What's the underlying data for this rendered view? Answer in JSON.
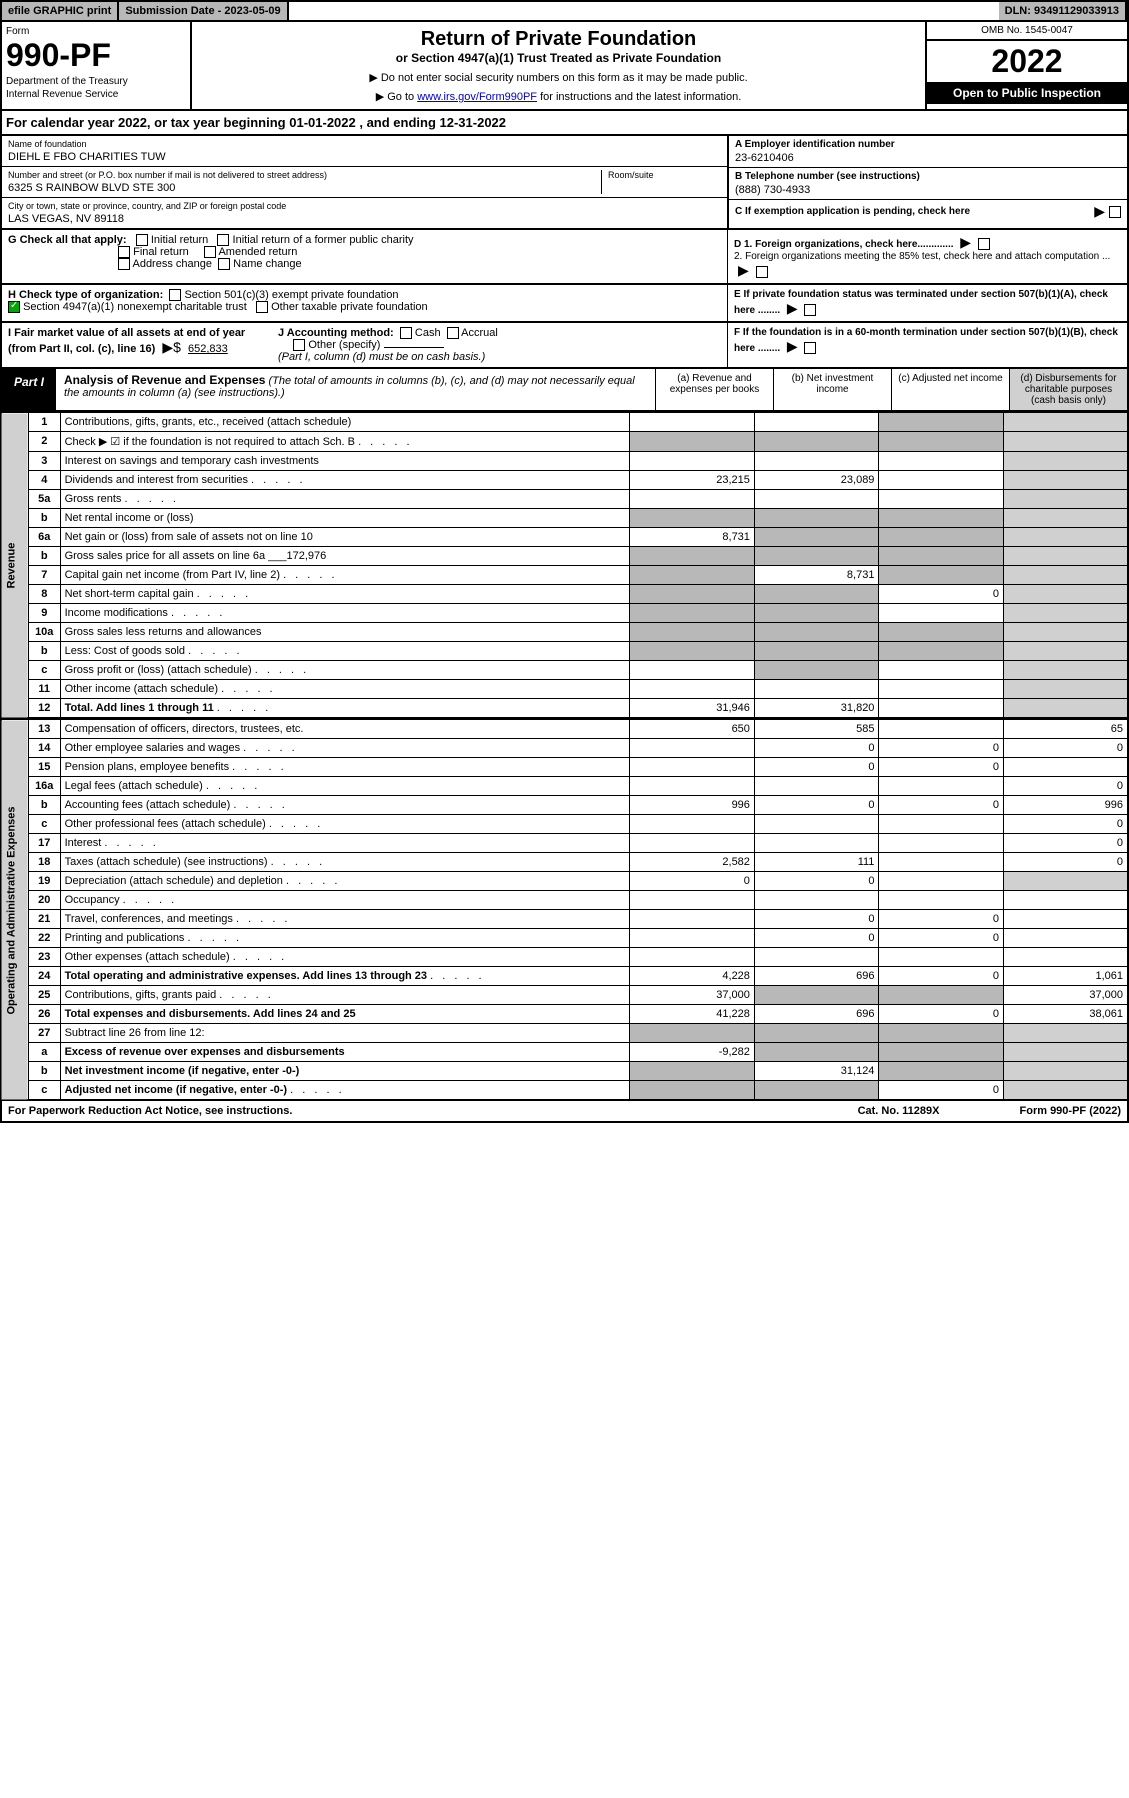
{
  "top": {
    "efile_prefix": "efile",
    "efile_graphic": "GRAPHIC",
    "efile_print": "print",
    "submission_label": "Submission Date - ",
    "submission_date": "2023-05-09",
    "dln_label": "DLN: ",
    "dln": "93491129033913"
  },
  "header": {
    "form_label": "Form",
    "form_number": "990-PF",
    "dept1": "Department of the Treasury",
    "dept2": "Internal Revenue Service",
    "title": "Return of Private Foundation",
    "subtitle": "or Section 4947(a)(1) Trust Treated as Private Foundation",
    "instr1_prefix": "▶ Do not enter social security numbers on this form as it may be made public.",
    "instr2_prefix": "▶ Go to ",
    "instr2_link": "www.irs.gov/Form990PF",
    "instr2_suffix": " for instructions and the latest information.",
    "omb": "OMB No. 1545-0047",
    "year": "2022",
    "open": "Open to Public Inspection"
  },
  "cal": {
    "prefix": "For calendar year 2022, or tax year beginning ",
    "begin": "01-01-2022",
    "mid": " , and ending ",
    "end": "12-31-2022"
  },
  "info": {
    "name_label": "Name of foundation",
    "name": "DIEHL E FBO CHARITIES TUW",
    "addr_label": "Number and street (or P.O. box number if mail is not delivered to street address)",
    "addr": "6325 S RAINBOW BLVD STE 300",
    "room_label": "Room/suite",
    "city_label": "City or town, state or province, country, and ZIP or foreign postal code",
    "city": "LAS VEGAS, NV  89118",
    "ein_label": "A Employer identification number",
    "ein": "23-6210406",
    "phone_label": "B Telephone number (see instructions)",
    "phone": "(888) 730-4933",
    "c_label": "C If exemption application is pending, check here",
    "d1": "D 1. Foreign organizations, check here.............",
    "d2": "2. Foreign organizations meeting the 85% test, check here and attach computation ...",
    "e": "E  If private foundation status was terminated under section 507(b)(1)(A), check here ........",
    "f": "F  If the foundation is in a 60-month termination under section 507(b)(1)(B), check here ........"
  },
  "g": {
    "label": "G Check all that apply:",
    "initial": "Initial return",
    "initial_former": "Initial return of a former public charity",
    "final": "Final return",
    "amended": "Amended return",
    "addr_change": "Address change",
    "name_change": "Name change"
  },
  "h": {
    "label": "H Check type of organization:",
    "sec501": "Section 501(c)(3) exempt private foundation",
    "sec4947": "Section 4947(a)(1) nonexempt charitable trust",
    "other_tax": "Other taxable private foundation"
  },
  "i": {
    "label": "I Fair market value of all assets at end of year (from Part II, col. (c), line 16)",
    "arrow": "▶$",
    "value": "652,833"
  },
  "j": {
    "label": "J Accounting method:",
    "cash": "Cash",
    "accrual": "Accrual",
    "other": "Other (specify)",
    "note": "(Part I, column (d) must be on cash basis.)"
  },
  "part1": {
    "label": "Part I",
    "title": "Analysis of Revenue and Expenses",
    "title_note": " (The total of amounts in columns (b), (c), and (d) may not necessarily equal the amounts in column (a) (see instructions).)",
    "col_a": "(a)  Revenue and expenses per books",
    "col_b": "(b)  Net investment income",
    "col_c": "(c)  Adjusted net income",
    "col_d": "(d)  Disbursements for charitable purposes (cash basis only)"
  },
  "side": {
    "revenue": "Revenue",
    "expenses": "Operating and Administrative Expenses"
  },
  "rows": [
    {
      "n": "1",
      "d": "Contributions, gifts, grants, etc., received (attach schedule)",
      "a": "",
      "b": "",
      "c_shade": true,
      "d_shade": true
    },
    {
      "n": "2",
      "d": "Check ▶ ☑ if the foundation is not required to attach Sch. B",
      "dots": true,
      "a_shade": true,
      "b_shade": true,
      "c_shade": true,
      "d_shade": true
    },
    {
      "n": "3",
      "d": "Interest on savings and temporary cash investments",
      "a": "",
      "b": "",
      "c": "",
      "d_shade": true
    },
    {
      "n": "4",
      "d": "Dividends and interest from securities",
      "dots": true,
      "a": "23,215",
      "b": "23,089",
      "c": "",
      "d_shade": true
    },
    {
      "n": "5a",
      "d": "Gross rents",
      "dots": true,
      "a": "",
      "b": "",
      "c": "",
      "d_shade": true
    },
    {
      "n": "b",
      "d": "Net rental income or (loss)",
      "a_shade": true,
      "b_shade": true,
      "c_shade": true,
      "d_shade": true
    },
    {
      "n": "6a",
      "d": "Net gain or (loss) from sale of assets not on line 10",
      "a": "8,731",
      "b_shade": true,
      "c_shade": true,
      "d_shade": true
    },
    {
      "n": "b",
      "d": "Gross sales price for all assets on line 6a",
      "inline_val": "172,976",
      "a_shade": true,
      "b_shade": true,
      "c_shade": true,
      "d_shade": true
    },
    {
      "n": "7",
      "d": "Capital gain net income (from Part IV, line 2)",
      "dots": true,
      "a_shade": true,
      "b": "8,731",
      "c_shade": true,
      "d_shade": true
    },
    {
      "n": "8",
      "d": "Net short-term capital gain",
      "dots": true,
      "a_shade": true,
      "b_shade": true,
      "c": "0",
      "d_shade": true
    },
    {
      "n": "9",
      "d": "Income modifications",
      "dots": true,
      "a_shade": true,
      "b_shade": true,
      "c": "",
      "d_shade": true
    },
    {
      "n": "10a",
      "d": "Gross sales less returns and allowances",
      "a_shade": true,
      "b_shade": true,
      "c_shade": true,
      "d_shade": true
    },
    {
      "n": "b",
      "d": "Less: Cost of goods sold",
      "dots": true,
      "a_shade": true,
      "b_shade": true,
      "c_shade": true,
      "d_shade": true
    },
    {
      "n": "c",
      "d": "Gross profit or (loss) (attach schedule)",
      "dots": true,
      "a": "",
      "b_shade": true,
      "c": "",
      "d_shade": true
    },
    {
      "n": "11",
      "d": "Other income (attach schedule)",
      "dots": true,
      "a": "",
      "b": "",
      "c": "",
      "d_shade": true
    },
    {
      "n": "12",
      "d": "Total. Add lines 1 through 11",
      "dots": true,
      "bold": true,
      "a": "31,946",
      "b": "31,820",
      "c": "",
      "d_shade": true
    }
  ],
  "exp_rows": [
    {
      "n": "13",
      "d": "Compensation of officers, directors, trustees, etc.",
      "a": "650",
      "b": "585",
      "c": "",
      "dd": "65"
    },
    {
      "n": "14",
      "d": "Other employee salaries and wages",
      "dots": true,
      "a": "",
      "b": "0",
      "c": "0",
      "dd": "0"
    },
    {
      "n": "15",
      "d": "Pension plans, employee benefits",
      "dots": true,
      "a": "",
      "b": "0",
      "c": "0",
      "dd": ""
    },
    {
      "n": "16a",
      "d": "Legal fees (attach schedule)",
      "dots": true,
      "a": "",
      "b": "",
      "c": "",
      "dd": "0"
    },
    {
      "n": "b",
      "d": "Accounting fees (attach schedule)",
      "dots": true,
      "a": "996",
      "b": "0",
      "c": "0",
      "dd": "996"
    },
    {
      "n": "c",
      "d": "Other professional fees (attach schedule)",
      "dots": true,
      "a": "",
      "b": "",
      "c": "",
      "dd": "0"
    },
    {
      "n": "17",
      "d": "Interest",
      "dots": true,
      "a": "",
      "b": "",
      "c": "",
      "dd": "0"
    },
    {
      "n": "18",
      "d": "Taxes (attach schedule) (see instructions)",
      "dots": true,
      "a": "2,582",
      "b": "111",
      "c": "",
      "dd": "0"
    },
    {
      "n": "19",
      "d": "Depreciation (attach schedule) and depletion",
      "dots": true,
      "a": "0",
      "b": "0",
      "c": "",
      "d_shade": true
    },
    {
      "n": "20",
      "d": "Occupancy",
      "dots": true,
      "a": "",
      "b": "",
      "c": "",
      "dd": ""
    },
    {
      "n": "21",
      "d": "Travel, conferences, and meetings",
      "dots": true,
      "a": "",
      "b": "0",
      "c": "0",
      "dd": ""
    },
    {
      "n": "22",
      "d": "Printing and publications",
      "dots": true,
      "a": "",
      "b": "0",
      "c": "0",
      "dd": ""
    },
    {
      "n": "23",
      "d": "Other expenses (attach schedule)",
      "dots": true,
      "a": "",
      "b": "",
      "c": "",
      "dd": ""
    },
    {
      "n": "24",
      "d": "Total operating and administrative expenses. Add lines 13 through 23",
      "dots": true,
      "bold": true,
      "a": "4,228",
      "b": "696",
      "c": "0",
      "dd": "1,061"
    },
    {
      "n": "25",
      "d": "Contributions, gifts, grants paid",
      "dots": true,
      "a": "37,000",
      "b_shade": true,
      "c_shade": true,
      "dd": "37,000"
    },
    {
      "n": "26",
      "d": "Total expenses and disbursements. Add lines 24 and 25",
      "bold": true,
      "a": "41,228",
      "b": "696",
      "c": "0",
      "dd": "38,061"
    },
    {
      "n": "27",
      "d": "Subtract line 26 from line 12:",
      "a_shade": true,
      "b_shade": true,
      "c_shade": true,
      "d_shade": true
    },
    {
      "n": "a",
      "d": "Excess of revenue over expenses and disbursements",
      "bold": true,
      "a": "-9,282",
      "b_shade": true,
      "c_shade": true,
      "d_shade": true
    },
    {
      "n": "b",
      "d": "Net investment income (if negative, enter -0-)",
      "bold": true,
      "a_shade": true,
      "b": "31,124",
      "c_shade": true,
      "d_shade": true
    },
    {
      "n": "c",
      "d": "Adjusted net income (if negative, enter -0-)",
      "dots": true,
      "bold": true,
      "a_shade": true,
      "b_shade": true,
      "c": "0",
      "d_shade": true
    }
  ],
  "footer": {
    "left": "For Paperwork Reduction Act Notice, see instructions.",
    "mid": "Cat. No. 11289X",
    "right": "Form 990-PF (2022)"
  }
}
